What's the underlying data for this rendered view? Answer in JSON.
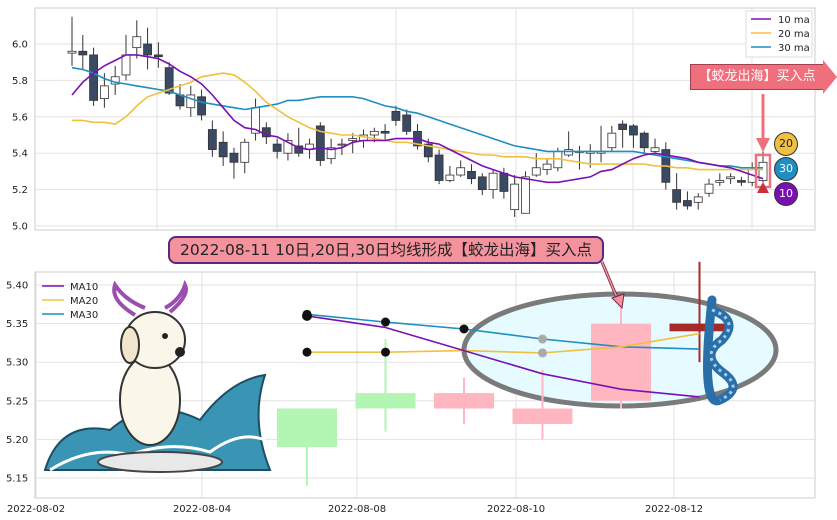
{
  "chart_data": [
    {
      "type": "candlestick",
      "ylim": [
        4.98,
        6.2
      ],
      "yticks": [
        "6.0",
        "5.8",
        "5.6",
        "5.4",
        "5.2",
        "5.0"
      ],
      "grid": true,
      "legend": {
        "position": "top-right",
        "entries": [
          "10 ma",
          "20 ma",
          "30 ma"
        ]
      },
      "ohlc": [
        [
          5.95,
          5.96,
          6.15,
          5.88
        ],
        [
          5.96,
          5.94,
          6.05,
          5.86
        ],
        [
          5.94,
          5.69,
          5.98,
          5.66
        ],
        [
          5.7,
          5.77,
          5.84,
          5.65
        ],
        [
          5.78,
          5.82,
          5.88,
          5.72
        ],
        [
          5.83,
          5.94,
          6.05,
          5.8
        ],
        [
          5.98,
          6.04,
          6.13,
          5.92
        ],
        [
          6.0,
          5.94,
          6.09,
          5.86
        ],
        [
          5.94,
          5.93,
          6.01,
          5.87
        ],
        [
          5.87,
          5.73,
          5.9,
          5.72
        ],
        [
          5.72,
          5.66,
          5.78,
          5.64
        ],
        [
          5.65,
          5.72,
          5.77,
          5.6
        ],
        [
          5.71,
          5.61,
          5.75,
          5.58
        ],
        [
          5.53,
          5.42,
          5.58,
          5.38
        ],
        [
          5.46,
          5.38,
          5.52,
          5.33
        ],
        [
          5.4,
          5.35,
          5.43,
          5.26
        ],
        [
          5.35,
          5.46,
          5.48,
          5.29
        ],
        [
          5.51,
          5.65,
          5.7,
          5.47
        ],
        [
          5.54,
          5.49,
          5.57,
          5.45
        ],
        [
          5.45,
          5.41,
          5.48,
          5.37
        ],
        [
          5.4,
          5.47,
          5.51,
          5.36
        ],
        [
          5.44,
          5.4,
          5.54,
          5.38
        ],
        [
          5.42,
          5.45,
          5.48,
          5.37
        ],
        [
          5.55,
          5.36,
          5.57,
          5.33
        ],
        [
          5.37,
          5.43,
          5.48,
          5.34
        ],
        [
          5.45,
          5.45,
          5.48,
          5.39
        ],
        [
          5.47,
          5.48,
          5.51,
          5.4
        ],
        [
          5.47,
          5.5,
          5.53,
          5.43
        ],
        [
          5.5,
          5.52,
          5.54,
          5.46
        ],
        [
          5.52,
          5.51,
          5.56,
          5.47
        ],
        [
          5.63,
          5.58,
          5.66,
          5.55
        ],
        [
          5.61,
          5.52,
          5.64,
          5.5
        ],
        [
          5.52,
          5.44,
          5.56,
          5.42
        ],
        [
          5.45,
          5.38,
          5.48,
          5.35
        ],
        [
          5.39,
          5.25,
          5.42,
          5.23
        ],
        [
          5.25,
          5.28,
          5.33,
          5.24
        ],
        [
          5.28,
          5.32,
          5.36,
          5.27
        ],
        [
          5.3,
          5.26,
          5.34,
          5.23
        ],
        [
          5.27,
          5.2,
          5.29,
          5.17
        ],
        [
          5.2,
          5.29,
          5.31,
          5.15
        ],
        [
          5.29,
          5.19,
          5.32,
          5.15
        ],
        [
          5.09,
          5.23,
          5.28,
          5.05
        ],
        [
          5.07,
          5.27,
          5.3,
          5.07
        ],
        [
          5.28,
          5.32,
          5.4,
          5.27
        ],
        [
          5.31,
          5.34,
          5.37,
          5.28
        ],
        [
          5.32,
          5.41,
          5.43,
          5.3
        ],
        [
          5.39,
          5.42,
          5.52,
          5.38
        ],
        [
          5.41,
          5.41,
          5.44,
          5.31
        ],
        [
          5.4,
          5.41,
          5.45,
          5.32
        ],
        [
          5.4,
          5.41,
          5.55,
          5.35
        ],
        [
          5.43,
          5.51,
          5.55,
          5.41
        ],
        [
          5.56,
          5.53,
          5.58,
          5.43
        ],
        [
          5.55,
          5.5,
          5.56,
          5.43
        ],
        [
          5.51,
          5.43,
          5.52,
          5.4
        ],
        [
          5.41,
          5.43,
          5.48,
          5.39
        ],
        [
          5.42,
          5.24,
          5.46,
          5.2
        ],
        [
          5.2,
          5.13,
          5.29,
          5.09
        ],
        [
          5.14,
          5.11,
          5.19,
          5.09
        ],
        [
          5.13,
          5.16,
          5.18,
          5.09
        ],
        [
          5.18,
          5.23,
          5.26,
          5.16
        ],
        [
          5.24,
          5.25,
          5.29,
          5.22
        ],
        [
          5.26,
          5.27,
          5.29,
          5.23
        ],
        [
          5.25,
          5.24,
          5.27,
          5.22
        ],
        [
          5.24,
          5.31,
          5.35,
          5.22
        ],
        [
          5.25,
          5.35,
          5.42,
          5.24
        ]
      ],
      "ma10": [
        5.72,
        5.79,
        5.84,
        5.88,
        5.91,
        5.94,
        5.94,
        5.93,
        5.92,
        5.89,
        5.85,
        5.82,
        5.78,
        5.72,
        5.65,
        5.58,
        5.54,
        5.53,
        5.5,
        5.49,
        5.46,
        5.43,
        5.42,
        5.43,
        5.42,
        5.43,
        5.46,
        5.47,
        5.47,
        5.47,
        5.48,
        5.48,
        5.48,
        5.46,
        5.45,
        5.42,
        5.39,
        5.36,
        5.33,
        5.31,
        5.29,
        5.27,
        5.26,
        5.25,
        5.24,
        5.24,
        5.25,
        5.26,
        5.27,
        5.3,
        5.31,
        5.34,
        5.37,
        5.39,
        5.4,
        5.39,
        5.38,
        5.37,
        5.35,
        5.34,
        5.33,
        5.32,
        5.3,
        5.28,
        5.26
      ],
      "ma20": [
        5.58,
        5.58,
        5.57,
        5.57,
        5.56,
        5.6,
        5.66,
        5.71,
        5.73,
        5.75,
        5.77,
        5.79,
        5.82,
        5.83,
        5.84,
        5.83,
        5.79,
        5.74,
        5.68,
        5.64,
        5.6,
        5.57,
        5.54,
        5.52,
        5.51,
        5.5,
        5.5,
        5.49,
        5.48,
        5.47,
        5.46,
        5.46,
        5.45,
        5.44,
        5.43,
        5.42,
        5.41,
        5.4,
        5.39,
        5.39,
        5.38,
        5.38,
        5.38,
        5.37,
        5.37,
        5.37,
        5.36,
        5.35,
        5.34,
        5.34,
        5.34,
        5.34,
        5.34,
        5.34,
        5.33,
        5.33,
        5.32,
        5.32,
        5.31,
        5.31,
        5.31,
        5.31,
        5.31,
        5.31,
        5.31
      ],
      "ma30": [
        5.87,
        5.86,
        5.84,
        5.81,
        5.79,
        5.78,
        5.77,
        5.76,
        5.75,
        5.74,
        5.72,
        5.7,
        5.68,
        5.67,
        5.66,
        5.65,
        5.64,
        5.65,
        5.66,
        5.67,
        5.69,
        5.69,
        5.7,
        5.71,
        5.71,
        5.71,
        5.71,
        5.7,
        5.68,
        5.66,
        5.65,
        5.63,
        5.62,
        5.6,
        5.58,
        5.56,
        5.54,
        5.52,
        5.5,
        5.48,
        5.46,
        5.44,
        5.43,
        5.42,
        5.41,
        5.41,
        5.41,
        5.41,
        5.41,
        5.41,
        5.41,
        5.41,
        5.41,
        5.4,
        5.39,
        5.38,
        5.37,
        5.36,
        5.35,
        5.34,
        5.33,
        5.33,
        5.32,
        5.32,
        5.32
      ]
    },
    {
      "type": "candlestick",
      "ylim": [
        5.13,
        5.42
      ],
      "yticks": [
        "5.40",
        "5.35",
        "5.30",
        "5.25",
        "5.20",
        "5.15"
      ],
      "xticks": [
        "2022-08-02",
        "2022-08-04",
        "2022-08-08",
        "2022-08-10",
        "2022-08-12"
      ],
      "grid": true,
      "legend": {
        "position": "top-left",
        "entries": [
          "MA10",
          "MA20",
          "MA30"
        ]
      },
      "ohlc": [
        [
          5.24,
          5.19,
          5.24,
          5.14
        ],
        [
          5.26,
          5.24,
          5.33,
          5.21
        ],
        [
          5.24,
          5.26,
          5.28,
          5.22
        ],
        [
          5.22,
          5.24,
          5.29,
          5.2
        ],
        [
          5.25,
          5.35,
          5.37,
          5.24
        ],
        [
          5.34,
          5.35,
          5.43,
          5.3
        ]
      ],
      "ma10": [
        5.36,
        5.345,
        5.315,
        5.285,
        5.265,
        5.255
      ],
      "ma20": [
        5.313,
        5.313,
        5.315,
        5.312,
        5.32,
        5.337
      ],
      "ma30": [
        5.362,
        5.352,
        5.343,
        5.33,
        5.32,
        5.317
      ]
    }
  ],
  "annotation": "2022-08-11 10日,20日,30日均线形成【蛟龙出海】买入点",
  "signal_label": "【蛟龙出海】买入点",
  "badges": [
    "20",
    "30",
    "10"
  ],
  "colors": {
    "ma10": "#7a10b4",
    "ma20": "#f0c040",
    "ma30": "#1f8ec0",
    "up_top": "#ffffff",
    "down_top": "#3b4a63",
    "up_bottom": "#ffb6c1",
    "down_bottom": "#b3f5b3",
    "signal_candle": "#a52a2a",
    "badge20": "#f0c040",
    "badge30": "#1f8ec0",
    "badge10": "#7a10b4"
  }
}
